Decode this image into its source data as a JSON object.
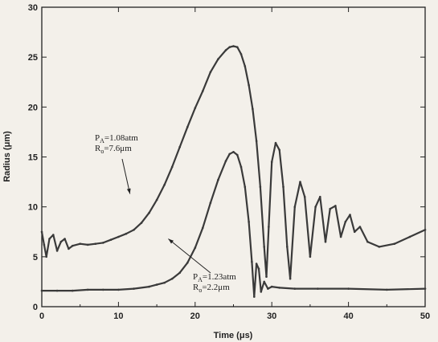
{
  "chart_data": {
    "type": "line",
    "title": "",
    "xlabel": "Time (μs)",
    "ylabel": "Radius (μm)",
    "xlim": [
      0,
      50
    ],
    "ylim": [
      0,
      30
    ],
    "xticks": [
      0,
      10,
      20,
      30,
      40,
      50
    ],
    "yticks": [
      0,
      5,
      10,
      15,
      20,
      25,
      30
    ],
    "grid": false,
    "legend": "none",
    "colors": {
      "series": "#3a3a3a",
      "axis": "#222222",
      "background": "#f3f0ea"
    },
    "annotations": [
      {
        "lines": [
          {
            "base": "P",
            "sub": "A",
            "rest": "=1.08atm"
          },
          {
            "base": "R",
            "sub": "o",
            "rest": "=7.6μm"
          }
        ],
        "target_x": 11.5,
        "target_y": 11.3
      },
      {
        "lines": [
          {
            "base": "P",
            "sub": "A",
            "rest": "=1.23atm"
          },
          {
            "base": "R",
            "sub": "o",
            "rest": "=2.2μm"
          }
        ],
        "target_x": 16.5,
        "target_y": 6.8
      }
    ],
    "series": [
      {
        "x": [
          0,
          0.3,
          0.6,
          1.0,
          1.5,
          2.0,
          2.5,
          3.0,
          3.5,
          4.0,
          5.0,
          6.0,
          7.0,
          8.0,
          9.0,
          10.0,
          11.0,
          12.0,
          13.0,
          14.0,
          15.0,
          16.0,
          17.0,
          18.0,
          19.0,
          20.0,
          21.0,
          22.0,
          23.0,
          24.0,
          24.5,
          25.0,
          25.5,
          26.0,
          26.5,
          27.0,
          27.5,
          28.0,
          28.5,
          29.0,
          29.3,
          29.6,
          30.0,
          30.5,
          31.0,
          31.5,
          32.0,
          32.4,
          33.0,
          33.7,
          34.3,
          35.0,
          35.7,
          36.3,
          37.0,
          37.6,
          38.3,
          39.0,
          39.6,
          40.2,
          40.8,
          41.5,
          42.5,
          44.0,
          46.0,
          48.0,
          50.0
        ],
        "y": [
          7.5,
          6.2,
          5.0,
          6.8,
          7.2,
          5.6,
          6.5,
          6.8,
          5.8,
          6.1,
          6.3,
          6.2,
          6.3,
          6.4,
          6.7,
          7.0,
          7.3,
          7.7,
          8.4,
          9.4,
          10.7,
          12.2,
          14.0,
          16.0,
          18.0,
          19.9,
          21.6,
          23.5,
          24.8,
          25.7,
          26.0,
          26.1,
          26.0,
          25.3,
          24.1,
          22.2,
          19.8,
          16.6,
          12.0,
          6.0,
          3.0,
          8.0,
          14.5,
          16.4,
          15.7,
          12.0,
          6.0,
          2.8,
          10.0,
          12.5,
          11.0,
          5.0,
          10.0,
          11.0,
          6.5,
          9.8,
          10.1,
          7.0,
          8.5,
          9.2,
          7.5,
          8.0,
          6.5,
          6.0,
          6.3,
          7.0,
          7.7
        ]
      },
      {
        "x": [
          0,
          2,
          4,
          6,
          8,
          10,
          12,
          14,
          15,
          16,
          17,
          18,
          19,
          20,
          21,
          22,
          23,
          24,
          24.5,
          25.0,
          25.5,
          26.0,
          26.5,
          27.0,
          27.4,
          27.7,
          28.0,
          28.3,
          28.6,
          29.0,
          29.5,
          30.0,
          31.0,
          33.0,
          36.0,
          40.0,
          45.0,
          50.0
        ],
        "y": [
          1.6,
          1.6,
          1.6,
          1.7,
          1.7,
          1.7,
          1.8,
          2.0,
          2.2,
          2.4,
          2.8,
          3.4,
          4.4,
          5.9,
          7.9,
          10.4,
          12.7,
          14.6,
          15.3,
          15.5,
          15.2,
          14.0,
          12.0,
          8.5,
          4.5,
          1.0,
          4.3,
          3.8,
          1.5,
          2.5,
          1.8,
          2.0,
          1.9,
          1.8,
          1.8,
          1.8,
          1.7,
          1.8
        ]
      }
    ]
  }
}
